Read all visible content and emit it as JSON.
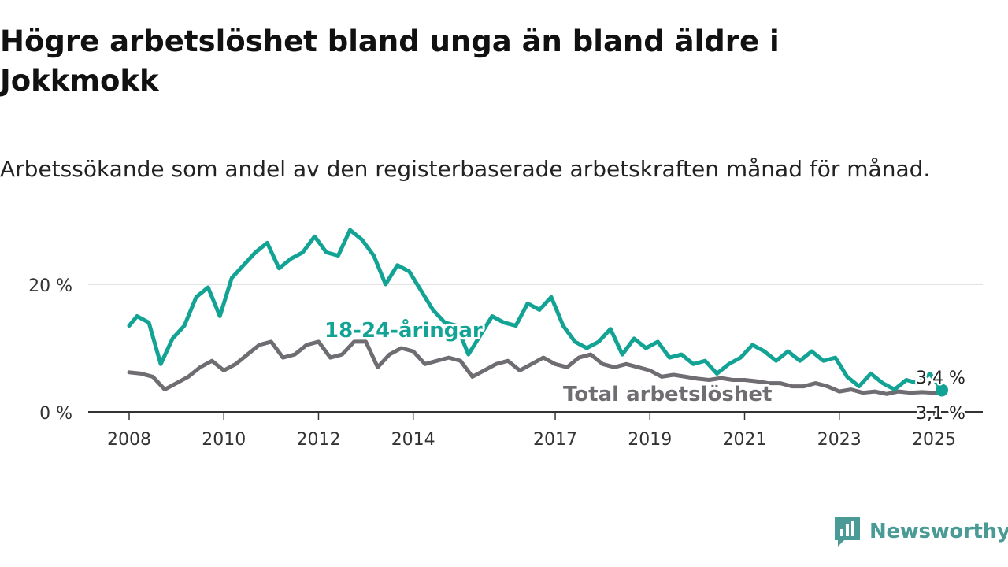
{
  "title": "Högre arbetslöshet bland unga än bland äldre i Jokkmokk",
  "subtitle": "Arbetssökande som andel av den registerbaserade arbetskraften månad för månad.",
  "brand": {
    "name": "Newsworthy",
    "icon": "newsworthy-logo-icon",
    "color": "#4a9a96"
  },
  "chart_data": {
    "type": "line",
    "x_axis": {
      "type": "date",
      "range": [
        "2008-01",
        "2025-03"
      ],
      "ticks": [
        "2008",
        "2010",
        "2012",
        "2014",
        "2017",
        "2019",
        "2021",
        "2023",
        "2025"
      ]
    },
    "y_axis": {
      "range": [
        0,
        30
      ],
      "ticks": [
        0,
        20
      ],
      "tick_labels": [
        "0 %",
        "20 %"
      ],
      "grid": true
    },
    "series": [
      {
        "name": "18-24-åringar",
        "color": "#13a394",
        "end_label": "3,4 %",
        "points": [
          [
            "2008-01",
            13.5
          ],
          [
            "2008-03",
            15.0
          ],
          [
            "2008-06",
            14.0
          ],
          [
            "2008-09",
            7.5
          ],
          [
            "2008-12",
            11.5
          ],
          [
            "2009-03",
            13.5
          ],
          [
            "2009-06",
            18.0
          ],
          [
            "2009-09",
            19.5
          ],
          [
            "2009-12",
            15.0
          ],
          [
            "2010-03",
            21.0
          ],
          [
            "2010-06",
            23.0
          ],
          [
            "2010-09",
            25.0
          ],
          [
            "2010-12",
            26.5
          ],
          [
            "2011-03",
            22.5
          ],
          [
            "2011-06",
            24.0
          ],
          [
            "2011-09",
            25.0
          ],
          [
            "2011-12",
            27.5
          ],
          [
            "2012-03",
            25.0
          ],
          [
            "2012-06",
            24.5
          ],
          [
            "2012-09",
            28.5
          ],
          [
            "2012-12",
            27.0
          ],
          [
            "2013-03",
            24.5
          ],
          [
            "2013-06",
            20.0
          ],
          [
            "2013-09",
            23.0
          ],
          [
            "2013-12",
            22.0
          ],
          [
            "2014-03",
            19.0
          ],
          [
            "2014-06",
            16.0
          ],
          [
            "2014-09",
            14.0
          ],
          [
            "2014-12",
            13.5
          ],
          [
            "2015-03",
            9.0
          ],
          [
            "2015-06",
            12.0
          ],
          [
            "2015-09",
            15.0
          ],
          [
            "2015-12",
            14.0
          ],
          [
            "2016-03",
            13.5
          ],
          [
            "2016-06",
            17.0
          ],
          [
            "2016-09",
            16.0
          ],
          [
            "2016-12",
            18.0
          ],
          [
            "2017-03",
            13.5
          ],
          [
            "2017-06",
            11.0
          ],
          [
            "2017-09",
            10.0
          ],
          [
            "2017-12",
            11.0
          ],
          [
            "2018-03",
            13.0
          ],
          [
            "2018-06",
            9.0
          ],
          [
            "2018-09",
            11.5
          ],
          [
            "2018-12",
            10.0
          ],
          [
            "2019-03",
            11.0
          ],
          [
            "2019-06",
            8.5
          ],
          [
            "2019-09",
            9.0
          ],
          [
            "2019-12",
            7.5
          ],
          [
            "2020-03",
            8.0
          ],
          [
            "2020-06",
            6.0
          ],
          [
            "2020-09",
            7.5
          ],
          [
            "2020-12",
            8.5
          ],
          [
            "2021-03",
            10.5
          ],
          [
            "2021-06",
            9.5
          ],
          [
            "2021-09",
            8.0
          ],
          [
            "2021-12",
            9.5
          ],
          [
            "2022-03",
            8.0
          ],
          [
            "2022-06",
            9.5
          ],
          [
            "2022-09",
            8.0
          ],
          [
            "2022-12",
            8.5
          ],
          [
            "2023-03",
            5.5
          ],
          [
            "2023-06",
            4.0
          ],
          [
            "2023-09",
            6.0
          ],
          [
            "2023-12",
            4.5
          ],
          [
            "2024-03",
            3.5
          ],
          [
            "2024-06",
            5.0
          ],
          [
            "2024-09",
            4.5
          ],
          [
            "2024-12",
            6.0
          ],
          [
            "2025-03",
            3.4
          ]
        ]
      },
      {
        "name": "Total arbetslöshet",
        "color": "#6f6c72",
        "end_label": "3,1 %",
        "points": [
          [
            "2008-01",
            6.2
          ],
          [
            "2008-04",
            6.0
          ],
          [
            "2008-07",
            5.5
          ],
          [
            "2008-10",
            3.5
          ],
          [
            "2009-01",
            4.5
          ],
          [
            "2009-04",
            5.5
          ],
          [
            "2009-07",
            7.0
          ],
          [
            "2009-10",
            8.0
          ],
          [
            "2010-01",
            6.5
          ],
          [
            "2010-04",
            7.5
          ],
          [
            "2010-07",
            9.0
          ],
          [
            "2010-10",
            10.5
          ],
          [
            "2011-01",
            11.0
          ],
          [
            "2011-04",
            8.5
          ],
          [
            "2011-07",
            9.0
          ],
          [
            "2011-10",
            10.5
          ],
          [
            "2012-01",
            11.0
          ],
          [
            "2012-04",
            8.5
          ],
          [
            "2012-07",
            9.0
          ],
          [
            "2012-10",
            11.0
          ],
          [
            "2013-01",
            11.0
          ],
          [
            "2013-04",
            7.0
          ],
          [
            "2013-07",
            9.0
          ],
          [
            "2013-10",
            10.0
          ],
          [
            "2014-01",
            9.5
          ],
          [
            "2014-04",
            7.5
          ],
          [
            "2014-07",
            8.0
          ],
          [
            "2014-10",
            8.5
          ],
          [
            "2015-01",
            8.0
          ],
          [
            "2015-04",
            5.5
          ],
          [
            "2015-07",
            6.5
          ],
          [
            "2015-10",
            7.5
          ],
          [
            "2016-01",
            8.0
          ],
          [
            "2016-04",
            6.5
          ],
          [
            "2016-07",
            7.5
          ],
          [
            "2016-10",
            8.5
          ],
          [
            "2017-01",
            7.5
          ],
          [
            "2017-04",
            7.0
          ],
          [
            "2017-07",
            8.5
          ],
          [
            "2017-10",
            9.0
          ],
          [
            "2018-01",
            7.5
          ],
          [
            "2018-04",
            7.0
          ],
          [
            "2018-07",
            7.5
          ],
          [
            "2018-10",
            7.0
          ],
          [
            "2019-01",
            6.5
          ],
          [
            "2019-04",
            5.5
          ],
          [
            "2019-07",
            5.8
          ],
          [
            "2019-10",
            5.5
          ],
          [
            "2020-01",
            5.2
          ],
          [
            "2020-04",
            5.0
          ],
          [
            "2020-07",
            5.3
          ],
          [
            "2020-10",
            5.0
          ],
          [
            "2021-01",
            5.0
          ],
          [
            "2021-04",
            4.8
          ],
          [
            "2021-07",
            4.5
          ],
          [
            "2021-10",
            4.5
          ],
          [
            "2022-01",
            4.0
          ],
          [
            "2022-04",
            4.0
          ],
          [
            "2022-07",
            4.5
          ],
          [
            "2022-10",
            4.0
          ],
          [
            "2023-01",
            3.2
          ],
          [
            "2023-04",
            3.5
          ],
          [
            "2023-07",
            3.0
          ],
          [
            "2023-10",
            3.2
          ],
          [
            "2024-01",
            2.8
          ],
          [
            "2024-04",
            3.2
          ],
          [
            "2024-07",
            3.0
          ],
          [
            "2024-10",
            3.1
          ],
          [
            "2025-01",
            3.0
          ],
          [
            "2025-03",
            3.1
          ]
        ]
      }
    ],
    "annotations": [
      {
        "text": "18-24-åringar",
        "series": "18-24-åringar"
      },
      {
        "text": "Total arbetslöshet",
        "series": "Total arbetslöshet"
      }
    ]
  }
}
